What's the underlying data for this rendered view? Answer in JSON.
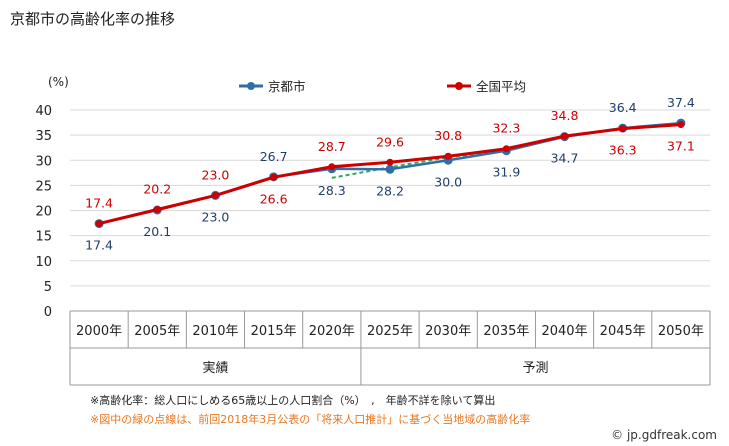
{
  "title": "京都市の高齢化率の推移",
  "notes": {
    "line1": "※高齢化率：総人口にしめる65歳以上の人口割合（%）　,　年齢不詳を除いて算出",
    "line2": "※図中の緑の点線は、前回2018年3月公表の「将来人口推計」に基づく当地域の高齢化率"
  },
  "credit": "© jp.gdfreak.com",
  "colors": {
    "kyoto": "#2e6fa7",
    "national": "#cc0000",
    "previous": "#3aa655"
  },
  "chart_data": {
    "type": "line",
    "ylabel": "(%)",
    "ylim": [
      0,
      40
    ],
    "yticks": [
      0,
      5,
      10,
      15,
      20,
      25,
      30,
      35,
      40
    ],
    "categories": [
      "2000年",
      "2005年",
      "2010年",
      "2015年",
      "2020年",
      "2025年",
      "2030年",
      "2035年",
      "2040年",
      "2045年",
      "2050年"
    ],
    "groups": [
      {
        "label": "実績",
        "start": 0,
        "end": 4
      },
      {
        "label": "予測",
        "start": 5,
        "end": 10
      }
    ],
    "legend_position": "top-center",
    "series": [
      {
        "name": "京都市",
        "color": "#2e6fa7",
        "values": [
          17.4,
          20.1,
          23.0,
          26.7,
          28.3,
          28.2,
          30.0,
          31.9,
          34.7,
          36.4,
          37.4
        ]
      },
      {
        "name": "全国平均",
        "color": "#cc0000",
        "values": [
          17.4,
          20.2,
          23.0,
          26.6,
          28.7,
          29.6,
          30.8,
          32.3,
          34.8,
          36.3,
          37.1
        ]
      }
    ],
    "previous_projection": {
      "x": [
        4,
        5,
        6,
        7,
        8,
        9,
        10
      ],
      "values": [
        26.5,
        28.6,
        30.6,
        32.0,
        34.6,
        36.3,
        37.3
      ]
    },
    "label_positions": {
      "京都市": [
        "below",
        "below",
        "below",
        "above",
        "below",
        "below",
        "below",
        "below",
        "below",
        "above",
        "above"
      ],
      "全国平均": [
        "above",
        "above",
        "above",
        "below",
        "above",
        "above",
        "above",
        "above",
        "above",
        "below",
        "below"
      ]
    }
  }
}
